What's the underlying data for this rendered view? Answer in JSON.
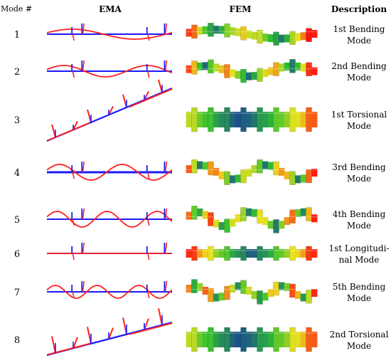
{
  "headers": {
    "mode": "Mode #",
    "ema": "EMA",
    "fem": "FEM",
    "description": "Description"
  },
  "modes": [
    {
      "number": "1",
      "description": [
        "1st Bending",
        "Mode"
      ],
      "fem_shape": "bending-1",
      "ema_shape": "bending-1"
    },
    {
      "number": "2",
      "description": [
        "2nd Bending",
        "Mode"
      ],
      "fem_shape": "bending-2",
      "ema_shape": "bending-2"
    },
    {
      "number": "3",
      "description": [
        "1st Torsional",
        "Mode"
      ],
      "fem_shape": "torsional-1",
      "ema_shape": "torsional-1"
    },
    {
      "number": "4",
      "description": [
        "3rd Bending",
        "Mode"
      ],
      "fem_shape": "bending-3",
      "ema_shape": "bending-3"
    },
    {
      "number": "5",
      "description": [
        "4th Bending",
        "Mode"
      ],
      "fem_shape": "bending-4",
      "ema_shape": "bending-4"
    },
    {
      "number": "6",
      "description": [
        "1st Longitudi-",
        "nal Mode"
      ],
      "fem_shape": "longitudinal-1",
      "ema_shape": "longitudinal-1"
    },
    {
      "number": "7",
      "description": [
        "5th Bending",
        "Mode"
      ],
      "fem_shape": "bending-5",
      "ema_shape": "bending-5"
    },
    {
      "number": "8",
      "description": [
        "2nd Torsional",
        "Mode"
      ],
      "fem_shape": "torsional-2",
      "ema_shape": "torsional-2"
    }
  ],
  "colors": {
    "ema_reference": "#1a1aff",
    "ema_deformed": "#ff2020",
    "fem_low": "#1010c0",
    "fem_mid": "#30c030",
    "fem_high": "#ff1010"
  }
}
